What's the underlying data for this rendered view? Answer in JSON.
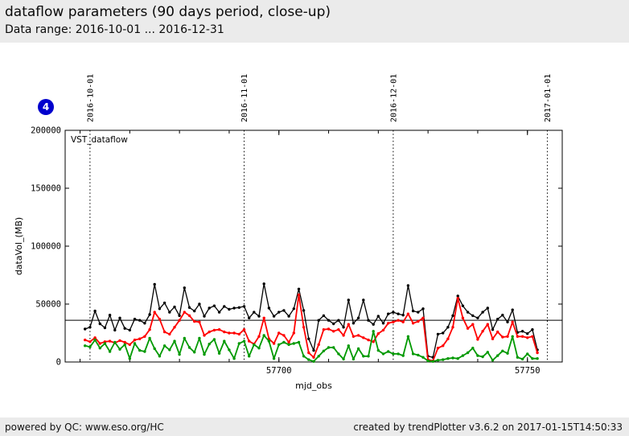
{
  "header": {
    "title": "dataflow parameters (90 days period, close-up)",
    "subtitle": "Data range: 2016-10-01 ... 2016-12-31"
  },
  "badge": {
    "label": "4",
    "color": "#0000cd"
  },
  "footer": {
    "left": "powered by QC: www.eso.org/HC",
    "right": "created by trendPlotter v3.6.2 on 2017-01-15T14:50:33"
  },
  "chart_data": {
    "type": "line",
    "plot_label": "VST_dataflow",
    "xlabel": "mjd_obs",
    "ylabel": "dataVol_(MB)",
    "xlim": [
      57657,
      57757
    ],
    "ylim": [
      0,
      200000
    ],
    "grid": "off",
    "legend": "none",
    "reference_line_y": 36000,
    "y_ticks": [
      {
        "value": 0,
        "label": "0"
      },
      {
        "value": 50000,
        "label": "50000"
      },
      {
        "value": 100000,
        "label": "100000"
      },
      {
        "value": 150000,
        "label": "150000"
      },
      {
        "value": 200000,
        "label": "200000"
      }
    ],
    "x_major_ticks": [
      {
        "value": 57700,
        "label": "57700"
      },
      {
        "value": 57750,
        "label": "57750"
      }
    ],
    "x_minor_ticks": [
      57660,
      57670,
      57680,
      57690,
      57700,
      57710,
      57720,
      57730,
      57740,
      57750
    ],
    "month_lines": [
      {
        "mjd": 57662,
        "label": "2016-10-01"
      },
      {
        "mjd": 57693,
        "label": "2016-11-01"
      },
      {
        "mjd": 57723,
        "label": "2016-12-01"
      },
      {
        "mjd": 57754,
        "label": "2017-01-01"
      }
    ],
    "x": [
      57661,
      57662,
      57663,
      57664,
      57665,
      57666,
      57667,
      57668,
      57669,
      57670,
      57671,
      57672,
      57673,
      57674,
      57675,
      57676,
      57677,
      57678,
      57679,
      57680,
      57681,
      57682,
      57683,
      57684,
      57685,
      57686,
      57687,
      57688,
      57689,
      57690,
      57691,
      57692,
      57693,
      57694,
      57695,
      57696,
      57697,
      57698,
      57699,
      57700,
      57701,
      57702,
      57703,
      57704,
      57705,
      57706,
      57707,
      57708,
      57709,
      57710,
      57711,
      57712,
      57713,
      57714,
      57715,
      57716,
      57717,
      57718,
      57719,
      57720,
      57721,
      57722,
      57723,
      57724,
      57725,
      57726,
      57727,
      57728,
      57729,
      57730,
      57731,
      57732,
      57733,
      57734,
      57735,
      57736,
      57737,
      57738,
      57739,
      57740,
      57741,
      57742,
      57743,
      57744,
      57745,
      57746,
      57747,
      57748,
      57749,
      57750,
      57751,
      57752
    ],
    "series": [
      {
        "name": "black",
        "color": "#000000",
        "values": [
          28500,
          30000,
          44000,
          33000,
          29500,
          40500,
          27500,
          38000,
          29000,
          27500,
          37000,
          36000,
          33500,
          41000,
          67000,
          46000,
          51000,
          43000,
          47500,
          40000,
          64000,
          47000,
          44000,
          50000,
          39500,
          46500,
          48500,
          43000,
          48000,
          45500,
          46500,
          47000,
          48000,
          38000,
          43000,
          39500,
          67500,
          46500,
          39500,
          43000,
          44500,
          39500,
          46000,
          63000,
          44500,
          20000,
          10000,
          36000,
          40000,
          36000,
          33000,
          36000,
          30000,
          53500,
          33500,
          38000,
          53500,
          36000,
          32500,
          39500,
          33500,
          41500,
          43000,
          41500,
          40500,
          66000,
          44000,
          43000,
          46000,
          5000,
          4000,
          24000,
          25000,
          30000,
          40000,
          57000,
          48500,
          43000,
          40000,
          38000,
          43000,
          46500,
          28000,
          37000,
          40500,
          34500,
          45000,
          25500,
          26500,
          24500,
          28000,
          10500
        ]
      },
      {
        "name": "red",
        "color": "#ff0000",
        "values": [
          19000,
          17500,
          21000,
          16000,
          17500,
          18000,
          16500,
          18500,
          17000,
          15000,
          19000,
          20000,
          22000,
          28000,
          43000,
          37000,
          26000,
          24000,
          30000,
          36000,
          43000,
          40000,
          35000,
          34500,
          23000,
          26000,
          27500,
          28000,
          26000,
          25000,
          25000,
          24000,
          28000,
          18000,
          15500,
          22000,
          38000,
          20000,
          16000,
          25000,
          23000,
          17000,
          25000,
          58000,
          30000,
          8000,
          4000,
          15000,
          28000,
          28500,
          26500,
          28000,
          23000,
          32500,
          22000,
          23000,
          21000,
          19000,
          17500,
          24500,
          27500,
          33500,
          34500,
          36000,
          34500,
          41500,
          33500,
          35000,
          38000,
          2000,
          1000,
          12000,
          14000,
          20000,
          30000,
          55000,
          38000,
          29000,
          32500,
          19500,
          26500,
          32500,
          20000,
          26000,
          21500,
          22000,
          34500,
          22000,
          22000,
          21000,
          22000,
          8000
        ]
      },
      {
        "name": "green",
        "color": "#009900",
        "values": [
          14000,
          13000,
          19000,
          12000,
          16000,
          9000,
          17000,
          11000,
          15000,
          3000,
          16000,
          10000,
          9000,
          20500,
          11500,
          5000,
          14000,
          10500,
          18000,
          6500,
          20500,
          12500,
          8500,
          20500,
          6500,
          15500,
          19500,
          7500,
          18000,
          10500,
          3000,
          16000,
          18000,
          5000,
          15000,
          12000,
          23000,
          18000,
          3000,
          15000,
          17000,
          15000,
          16000,
          17000,
          5000,
          2000,
          500,
          5000,
          9500,
          12500,
          12500,
          7000,
          2500,
          14000,
          2500,
          11500,
          5000,
          5000,
          26500,
          10000,
          7000,
          9000,
          7000,
          7000,
          5500,
          22000,
          7000,
          6000,
          4000,
          1000,
          500,
          1500,
          2000,
          3000,
          3500,
          3000,
          5500,
          8000,
          12000,
          5500,
          4500,
          8500,
          1500,
          5500,
          9500,
          7500,
          22000,
          4000,
          2500,
          7000,
          3000,
          3000
        ]
      }
    ]
  }
}
